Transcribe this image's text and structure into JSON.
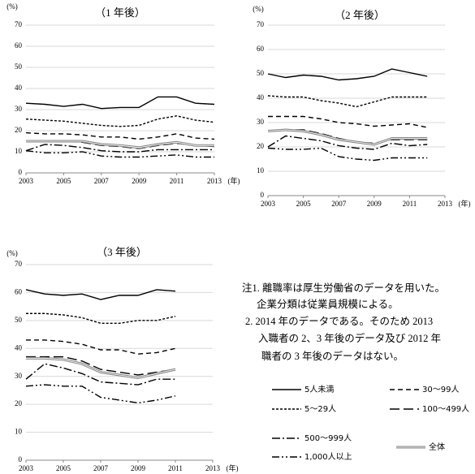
{
  "chart_data": [
    {
      "type": "line",
      "title": "（1 年後）",
      "y_label": "(%)",
      "x_label": "(年)",
      "x": [
        2003,
        2004,
        2005,
        2006,
        2007,
        2008,
        2009,
        2010,
        2011,
        2012,
        2013
      ],
      "xlim": [
        2003,
        2013
      ],
      "xticks": [
        2003,
        2005,
        2007,
        2009,
        2011,
        2013
      ],
      "ylim": [
        0,
        70
      ],
      "yticks": [
        0,
        10,
        20,
        30,
        40,
        50,
        60,
        70
      ],
      "grid": true,
      "series": [
        {
          "name": "5人未満",
          "color": "#000000",
          "dash": "solid",
          "values": [
            33,
            32.5,
            31.5,
            32.5,
            30.5,
            31,
            31,
            36,
            36,
            33,
            32.5
          ]
        },
        {
          "name": "5～29人",
          "color": "#000000",
          "dash": "short-dash",
          "values": [
            25.5,
            25,
            24.5,
            23.5,
            22.5,
            22,
            22.5,
            25.5,
            27,
            25,
            24
          ]
        },
        {
          "name": "30～99人",
          "color": "#000000",
          "dash": "dash",
          "values": [
            19,
            18.5,
            18.5,
            18,
            17,
            17,
            16,
            17,
            18.5,
            16.5,
            16
          ]
        },
        {
          "name": "100～499人",
          "color": "#000000",
          "dash": "long-dash",
          "values": [
            15,
            15,
            15,
            14.5,
            13,
            12.5,
            11.5,
            13,
            14,
            13,
            12.5
          ]
        },
        {
          "name": "500～999人",
          "color": "#000000",
          "dash": "dash-dot",
          "values": [
            10.5,
            13.5,
            13,
            12,
            10.5,
            10,
            10,
            11,
            11,
            11,
            11
          ]
        },
        {
          "name": "1,000人以上",
          "color": "#000000",
          "dash": "dash-dot-dot",
          "values": [
            10.5,
            9.5,
            9.5,
            10,
            8,
            7.5,
            7.5,
            8,
            8.5,
            7.5,
            7.5
          ]
        },
        {
          "name": "全体",
          "color": "#888888",
          "dash": "double",
          "values": [
            15,
            15,
            15,
            15,
            13.5,
            13,
            12,
            13.5,
            14.5,
            13,
            13
          ]
        }
      ]
    },
    {
      "type": "line",
      "title": "（2 年後）",
      "y_label": "(%)",
      "x_label": "(年)",
      "x": [
        2003,
        2004,
        2005,
        2006,
        2007,
        2008,
        2009,
        2010,
        2011,
        2012
      ],
      "xlim": [
        2003,
        2013
      ],
      "xticks": [
        2003,
        2005,
        2007,
        2009,
        2011,
        2013
      ],
      "ylim": [
        0,
        70
      ],
      "yticks": [
        0,
        10,
        20,
        30,
        40,
        50,
        60,
        70
      ],
      "grid": true,
      "series": [
        {
          "name": "5人未満",
          "color": "#000000",
          "dash": "solid",
          "values": [
            50,
            48.5,
            49.5,
            49,
            47.5,
            48,
            49,
            52,
            50.5,
            49
          ]
        },
        {
          "name": "5～29人",
          "color": "#000000",
          "dash": "short-dash",
          "values": [
            41,
            40.5,
            40.5,
            39,
            38,
            36.5,
            38.5,
            40.5,
            40.5,
            40.5
          ]
        },
        {
          "name": "30～99人",
          "color": "#000000",
          "dash": "dash",
          "values": [
            32.5,
            32.5,
            32.5,
            31.5,
            30,
            29.5,
            28.5,
            29,
            29.5,
            28
          ]
        },
        {
          "name": "100～499人",
          "color": "#000000",
          "dash": "long-dash",
          "values": [
            26.5,
            27,
            27,
            25.5,
            23.5,
            22,
            21.5,
            23,
            23,
            23
          ]
        },
        {
          "name": "500～999人",
          "color": "#000000",
          "dash": "dash-dot",
          "values": [
            20,
            24.5,
            23.5,
            22.5,
            20.5,
            19.5,
            19,
            21.5,
            20.5,
            21
          ]
        },
        {
          "name": "1,000人以上",
          "color": "#000000",
          "dash": "dash-dot-dot",
          "values": [
            19.5,
            19,
            19,
            19.5,
            16,
            15,
            14.5,
            15.5,
            15.5,
            15.5
          ]
        },
        {
          "name": "全体",
          "color": "#888888",
          "dash": "double",
          "values": [
            26.5,
            27,
            26.5,
            25,
            23,
            22,
            21,
            23.5,
            23.5,
            23.5
          ]
        }
      ]
    },
    {
      "type": "line",
      "title": "（3 年後）",
      "y_label": "(%)",
      "x_label": "(年)",
      "x": [
        2003,
        2004,
        2005,
        2006,
        2007,
        2008,
        2009,
        2010,
        2011
      ],
      "xlim": [
        2003,
        2013
      ],
      "xticks": [
        2003,
        2005,
        2007,
        2009,
        2011,
        2013
      ],
      "ylim": [
        0,
        70
      ],
      "yticks": [
        0,
        10,
        20,
        30,
        40,
        50,
        60,
        70
      ],
      "grid": true,
      "series": [
        {
          "name": "5人未満",
          "color": "#000000",
          "dash": "solid",
          "values": [
            61,
            59.5,
            59,
            59.5,
            57.5,
            59,
            59,
            61,
            60.5
          ]
        },
        {
          "name": "5～29人",
          "color": "#000000",
          "dash": "short-dash",
          "values": [
            52.5,
            52.5,
            52,
            51,
            49,
            49,
            50,
            50,
            51.5
          ]
        },
        {
          "name": "30～99人",
          "color": "#000000",
          "dash": "dash",
          "values": [
            43,
            43,
            42.5,
            41.5,
            39.5,
            39.5,
            38,
            38.5,
            40
          ]
        },
        {
          "name": "100～499人",
          "color": "#000000",
          "dash": "long-dash",
          "values": [
            37,
            37,
            37,
            35.5,
            32.5,
            31.5,
            30.5,
            31.5,
            32.5
          ]
        },
        {
          "name": "500～999人",
          "color": "#000000",
          "dash": "dash-dot",
          "values": [
            29,
            34.5,
            33,
            31,
            28,
            27.5,
            27,
            29,
            29
          ]
        },
        {
          "name": "1,000人以上",
          "color": "#000000",
          "dash": "dash-dot-dot",
          "values": [
            26.5,
            27,
            26.5,
            26.5,
            22.5,
            21.5,
            20.5,
            21.5,
            23
          ]
        },
        {
          "name": "全体",
          "color": "#888888",
          "dash": "double",
          "values": [
            36.5,
            36.5,
            36,
            34.5,
            31.5,
            30.5,
            29.5,
            31,
            32.5
          ]
        }
      ]
    }
  ],
  "notes": [
    "注1. 離職率は厚生労働省のデータを用いた。",
    "企業分類は従業員規模による。",
    "2. 2014 年のデータである。そのため 2013",
    "入職者の 2、3 年後のデータ及び 2012 年",
    "職者の 3 年後のデータはない。"
  ]
}
